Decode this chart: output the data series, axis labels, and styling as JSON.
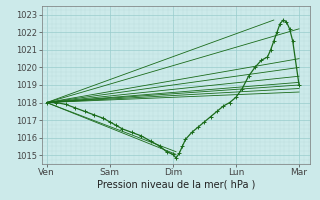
{
  "xlabel": "Pression niveau de la mer( hPa )",
  "bg_color": "#cceaea",
  "grid_major_color": "#99cccc",
  "grid_minor_color": "#bbdddd",
  "line_color": "#1a6b1a",
  "ylim": [
    1014.5,
    1023.5
  ],
  "yticks": [
    1015,
    1016,
    1017,
    1018,
    1019,
    1020,
    1021,
    1022,
    1023
  ],
  "xtick_labels": [
    "Ven",
    "Sam",
    "Dim",
    "Lun",
    "Mar"
  ],
  "xtick_positions": [
    0,
    1,
    2,
    3,
    4
  ],
  "fan_lines": [
    {
      "x": [
        0,
        4.0
      ],
      "y": [
        1018,
        1019.0
      ]
    },
    {
      "x": [
        0,
        4.0
      ],
      "y": [
        1018,
        1018.8
      ]
    },
    {
      "x": [
        0,
        4.0
      ],
      "y": [
        1018,
        1019.15
      ]
    },
    {
      "x": [
        0,
        4.0
      ],
      "y": [
        1018,
        1019.5
      ]
    },
    {
      "x": [
        0,
        4.0
      ],
      "y": [
        1018,
        1020.0
      ]
    },
    {
      "x": [
        0,
        4.0
      ],
      "y": [
        1018,
        1020.5
      ]
    },
    {
      "x": [
        0,
        3.6
      ],
      "y": [
        1018,
        1022.7
      ]
    },
    {
      "x": [
        0,
        4.0
      ],
      "y": [
        1018,
        1022.2
      ]
    },
    {
      "x": [
        0,
        2.05
      ],
      "y": [
        1018,
        1015.05
      ]
    },
    {
      "x": [
        0,
        2.05
      ],
      "y": [
        1018,
        1015.2
      ]
    },
    {
      "x": [
        0,
        4.0
      ],
      "y": [
        1018,
        1018.6
      ]
    }
  ],
  "main_curve_x": [
    0.0,
    0.15,
    0.3,
    0.45,
    0.6,
    0.75,
    0.9,
    1.0,
    1.1,
    1.2,
    1.35,
    1.5,
    1.65,
    1.8,
    1.9,
    2.0,
    2.05,
    2.1,
    2.15,
    2.2,
    2.3,
    2.4,
    2.5,
    2.6,
    2.7,
    2.8,
    2.9,
    3.0,
    3.1,
    3.2,
    3.3,
    3.4,
    3.5,
    3.55,
    3.6,
    3.65,
    3.7,
    3.75,
    3.8,
    3.85,
    3.9,
    4.0
  ],
  "main_curve_y": [
    1018.0,
    1018.0,
    1017.9,
    1017.7,
    1017.5,
    1017.3,
    1017.1,
    1016.9,
    1016.7,
    1016.5,
    1016.3,
    1016.1,
    1015.8,
    1015.5,
    1015.2,
    1015.05,
    1014.85,
    1015.1,
    1015.5,
    1015.9,
    1016.3,
    1016.6,
    1016.9,
    1017.2,
    1017.5,
    1017.8,
    1018.0,
    1018.3,
    1018.8,
    1019.5,
    1020.0,
    1020.4,
    1020.6,
    1021.0,
    1021.5,
    1022.0,
    1022.5,
    1022.7,
    1022.6,
    1022.2,
    1021.5,
    1019.0
  ]
}
